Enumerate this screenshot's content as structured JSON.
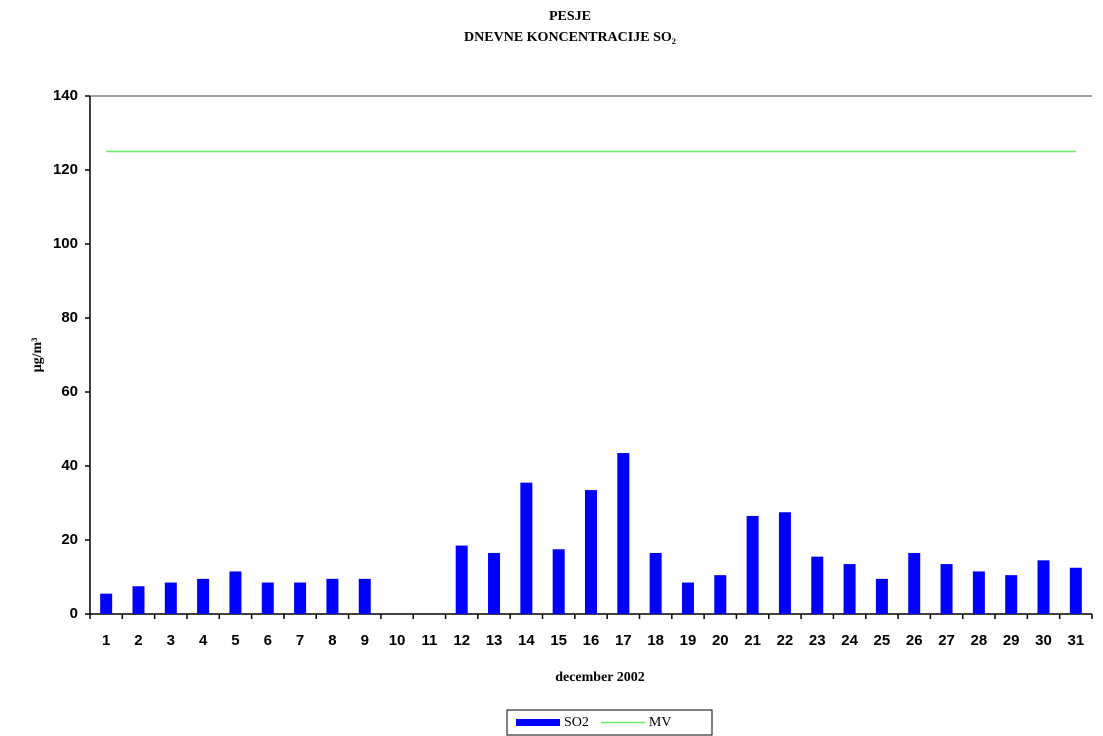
{
  "chart_data": {
    "type": "bar",
    "title": "PESJE",
    "subtitle": "DNEVNE KONCENTRACIJE  SO₂",
    "x_label": "december 2002",
    "y_label": "µg/m³",
    "categories": [
      "1",
      "2",
      "3",
      "4",
      "5",
      "6",
      "7",
      "8",
      "9",
      "10",
      "11",
      "12",
      "13",
      "14",
      "15",
      "16",
      "17",
      "18",
      "19",
      "20",
      "21",
      "22",
      "23",
      "24",
      "25",
      "26",
      "27",
      "28",
      "29",
      "30",
      "31"
    ],
    "series": [
      {
        "name": "SO2",
        "type": "bar",
        "color": "#0000ff",
        "values": [
          5.5,
          7.5,
          8.5,
          9.5,
          11.5,
          8.5,
          8.5,
          9.5,
          9.5,
          null,
          null,
          18.5,
          16.5,
          35.5,
          17.5,
          33.5,
          43.5,
          16.5,
          8.5,
          10.5,
          26.5,
          27.5,
          15.5,
          13.5,
          9.5,
          16.5,
          13.5,
          11.5,
          10.5,
          14.5,
          12.5
        ]
      },
      {
        "name": "MV",
        "type": "line",
        "color": "#66ee66",
        "values": [
          125,
          125,
          125,
          125,
          125,
          125,
          125,
          125,
          125,
          125,
          125,
          125,
          125,
          125,
          125,
          125,
          125,
          125,
          125,
          125,
          125,
          125,
          125,
          125,
          125,
          125,
          125,
          125,
          125,
          125,
          125
        ]
      }
    ],
    "ylim": [
      0,
      140
    ],
    "yticks": [
      0,
      20,
      40,
      60,
      80,
      100,
      120,
      140
    ],
    "grid": false,
    "legend": "bottom"
  }
}
